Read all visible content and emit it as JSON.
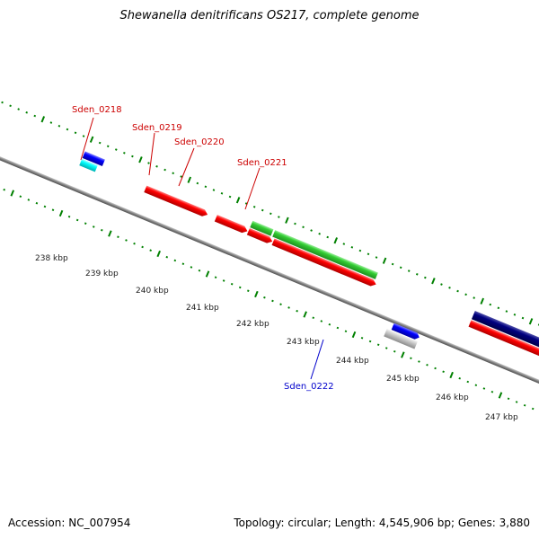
{
  "title": "Shewanella denitrificans OS217, complete genome",
  "footer": {
    "accession": "Accession: NC_007954",
    "summary": "Topology: circular; Length: 4,545,906 bp; Genes: 3,880"
  },
  "colors": {
    "forward_cds": "#ff0000",
    "reverse_cds": "#0000ff",
    "forward_other": "#33cc33",
    "reverse_other": "#00ffff",
    "dark_reverse": "#000080",
    "pseudo": "#bbbbbb",
    "backbone": "#888888",
    "tick": "#008000",
    "top_label": "#cc0000",
    "bottom_label": "#0000cc"
  },
  "kbp_labels": [
    "238 kbp",
    "239 kbp",
    "240 kbp",
    "241 kbp",
    "242 kbp",
    "243 kbp",
    "244 kbp",
    "245 kbp",
    "246 kbp",
    "247 kbp"
  ],
  "gene_labels_top": [
    "Sden_0218",
    "Sden_0219",
    "Sden_0220",
    "Sden_0221"
  ],
  "gene_labels_bottom": [
    "Sden_0222"
  ]
}
